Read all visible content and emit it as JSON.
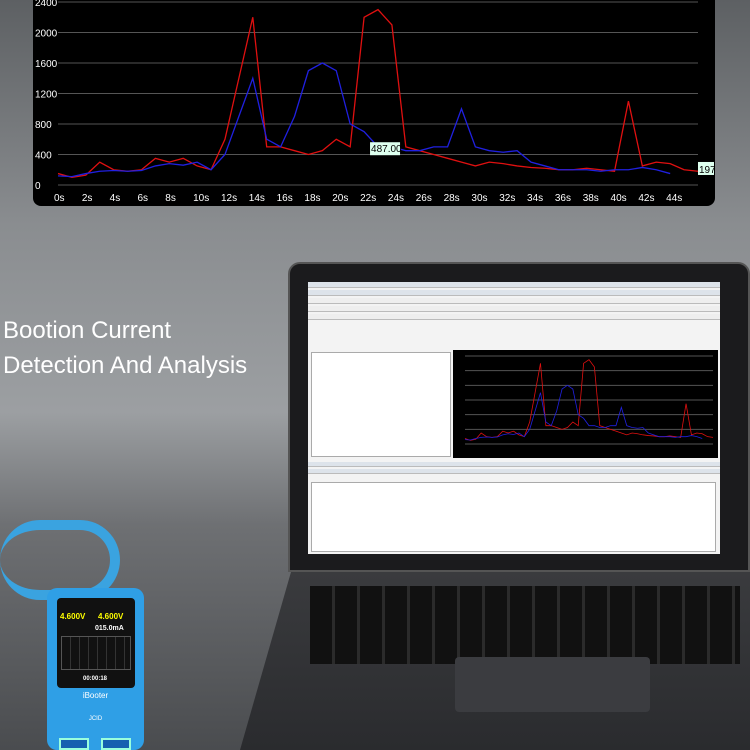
{
  "chart_data": {
    "type": "line",
    "ylim": [
      0,
      2400
    ],
    "yticks": [
      "0",
      "400",
      "800",
      "1200",
      "1600",
      "2000",
      "2400"
    ],
    "xlim": [
      0,
      46
    ],
    "xticks": [
      "0s",
      "2s",
      "4s",
      "6s",
      "8s",
      "10s",
      "12s",
      "14s",
      "16s",
      "18s",
      "20s",
      "22s",
      "24s",
      "26s",
      "28s",
      "30s",
      "32s",
      "34s",
      "36s",
      "38s",
      "40s",
      "42s",
      "44s"
    ],
    "grid": true,
    "annotations": [
      "487.00",
      "197"
    ],
    "series": [
      {
        "color": "#e01010",
        "x": [
          0,
          1,
          2,
          3,
          4,
          5,
          6,
          7,
          8,
          9,
          10,
          11,
          12,
          13,
          14,
          15,
          16,
          17,
          18,
          19,
          20,
          21,
          22,
          23,
          24,
          25,
          26,
          27,
          28,
          29,
          30,
          31,
          32,
          33,
          34,
          35,
          36,
          37,
          38,
          39,
          40,
          41,
          42,
          43,
          44,
          45,
          46
        ],
        "values": [
          150,
          100,
          130,
          300,
          200,
          180,
          200,
          350,
          300,
          350,
          250,
          200,
          600,
          1400,
          2200,
          500,
          500,
          450,
          400,
          450,
          600,
          500,
          2200,
          2300,
          2100,
          500,
          450,
          400,
          350,
          300,
          250,
          300,
          280,
          250,
          230,
          220,
          200,
          200,
          220,
          200,
          180,
          1100,
          250,
          300,
          280,
          200,
          180
        ]
      },
      {
        "color": "#2020e0",
        "x": [
          0,
          1,
          2,
          3,
          4,
          5,
          6,
          7,
          8,
          9,
          10,
          11,
          12,
          13,
          14,
          15,
          16,
          17,
          18,
          19,
          20,
          21,
          22,
          23,
          24,
          25,
          26,
          27,
          28,
          29,
          30,
          31,
          32,
          33,
          34,
          35,
          36,
          37,
          38,
          39,
          40,
          41,
          42,
          43,
          44
        ],
        "values": [
          120,
          110,
          150,
          180,
          190,
          180,
          190,
          250,
          280,
          260,
          300,
          200,
          400,
          900,
          1400,
          600,
          500,
          900,
          1500,
          1600,
          1500,
          800,
          700,
          500,
          500,
          450,
          450,
          500,
          500,
          1000,
          500,
          450,
          430,
          450,
          300,
          250,
          200,
          200,
          200,
          180,
          200,
          200,
          230,
          200,
          150
        ]
      }
    ]
  },
  "headline": {
    "line1": "Bootion Current",
    "line2": "Detection And Analysis"
  },
  "device": {
    "brand": "iBooter",
    "logo": "JCID",
    "voltage1": "4.600V",
    "voltage2": "4.600V",
    "current": "015.0mA",
    "timer": "00:00:18"
  }
}
